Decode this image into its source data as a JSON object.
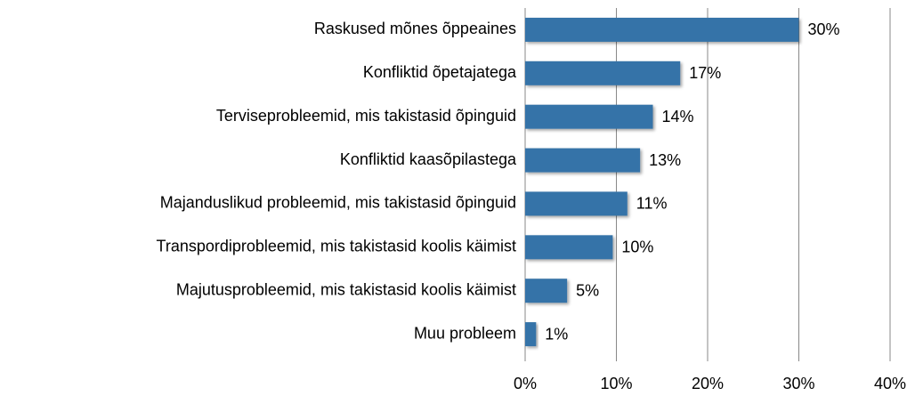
{
  "chart_data": {
    "type": "bar",
    "orientation": "horizontal",
    "categories": [
      "Raskused mõnes õppeaines",
      "Konfliktid õpetajatega",
      "Terviseprobleemid, mis takistasid õpinguid",
      "Konfliktid kaasõpilastega",
      "Majanduslikud probleemid, mis takistasid õpinguid",
      "Transpordiprobleemid, mis takistasid koolis käimist",
      "Majutusprobleemid, mis takistasid koolis käimist",
      "Muu probleem"
    ],
    "values": [
      30,
      17,
      14,
      12.6,
      11.2,
      9.6,
      4.6,
      1.2
    ],
    "value_labels": [
      "30%",
      "17%",
      "14%",
      "13%",
      "11%",
      "10%",
      "5%",
      "1%"
    ],
    "color": "#3673a8",
    "xlim": [
      0,
      40
    ],
    "xticks": [
      {
        "value": 0,
        "label": "0%"
      },
      {
        "value": 10,
        "label": "10%"
      },
      {
        "value": 20,
        "label": "20%"
      },
      {
        "value": 30,
        "label": "30%"
      },
      {
        "value": 40,
        "label": "40%"
      }
    ],
    "grid": true
  }
}
